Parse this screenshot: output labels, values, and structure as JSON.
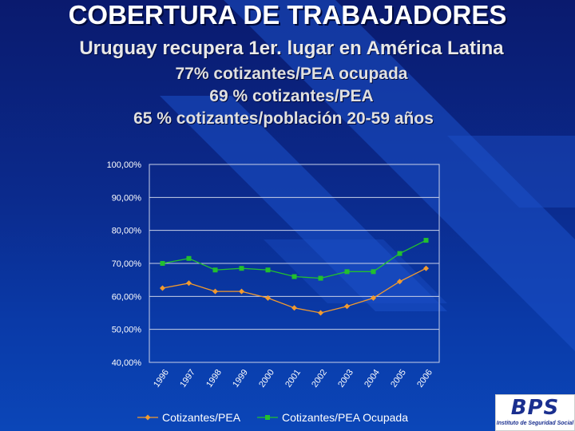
{
  "slide": {
    "title": "COBERTURA DE TRABAJADORES",
    "subtitle": "Uruguay recupera 1er. lugar en América Latina",
    "lines": [
      "77% cotizantes/PEA ocupada",
      "69 % cotizantes/PEA",
      "65 % cotizantes/población 20-59 años"
    ]
  },
  "logo": {
    "text": "BPS",
    "subtext": "Instituto de Seguridad Social"
  },
  "chart_data": {
    "type": "line",
    "x": [
      "1996",
      "1997",
      "1998",
      "1999",
      "2000",
      "2001",
      "2002",
      "2003",
      "2004",
      "2005",
      "2006"
    ],
    "y_ticks": [
      "100,00%",
      "90,00%",
      "80,00%",
      "70,00%",
      "60,00%",
      "50,00%",
      "40,00%"
    ],
    "ylim": [
      40,
      100
    ],
    "grid": "horizontal",
    "legend_position": "bottom",
    "series": [
      {
        "name": "Cotizantes/PEA",
        "color": "#f29a2e",
        "marker": "diamond",
        "values": [
          62.5,
          64.0,
          61.5,
          61.5,
          59.5,
          56.5,
          55.0,
          57.0,
          59.5,
          64.5,
          68.5
        ]
      },
      {
        "name": "Cotizantes/PEA Ocupada",
        "color": "#22c02e",
        "marker": "square",
        "values": [
          70.0,
          71.5,
          68.0,
          68.5,
          68.0,
          66.0,
          65.5,
          67.5,
          67.5,
          73.0,
          77.0
        ]
      }
    ]
  }
}
